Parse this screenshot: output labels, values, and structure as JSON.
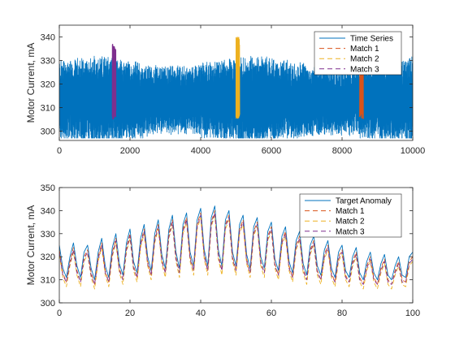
{
  "chart_data": [
    {
      "type": "line",
      "title": "",
      "xlabel": "",
      "ylabel": "Motor Current, mA",
      "xlim": [
        0,
        10000
      ],
      "ylim": [
        296,
        345
      ],
      "xticks": [
        0,
        2000,
        4000,
        6000,
        8000,
        10000
      ],
      "yticks": [
        300,
        310,
        320,
        330,
        340
      ],
      "grid": false,
      "legend_position": "top-right",
      "series": [
        {
          "name": "Time Series",
          "color": "#0072BD",
          "style": "solid",
          "x_range": [
            0,
            10000
          ],
          "n": 10000,
          "baseline": 313,
          "amplitude_range": [
            8,
            12
          ],
          "min": 297,
          "max": 336
        },
        {
          "name": "Match 1",
          "color": "#D95319",
          "style": "dashed",
          "x_range": [
            8500,
            8600
          ],
          "min": 305,
          "max": 341
        },
        {
          "name": "Match 2",
          "color": "#EDB120",
          "style": "dashed",
          "x_range": [
            5000,
            5100
          ],
          "min": 305,
          "max": 340
        },
        {
          "name": "Match 3",
          "color": "#7E2F8E",
          "style": "dashed",
          "x_range": [
            1500,
            1600
          ],
          "min": 305,
          "max": 337
        }
      ]
    },
    {
      "type": "line",
      "title": "",
      "xlabel": "",
      "ylabel": "Motor Current, mA",
      "xlim": [
        0,
        100
      ],
      "ylim": [
        300,
        350
      ],
      "xticks": [
        0,
        20,
        40,
        60,
        80,
        100
      ],
      "yticks": [
        300,
        310,
        320,
        330,
        340,
        350
      ],
      "grid": false,
      "legend_position": "top-right",
      "series": [
        {
          "name": "Target Anomaly",
          "color": "#0072BD",
          "style": "solid",
          "x": [
            0,
            1,
            2,
            3,
            4,
            5,
            6,
            7,
            8,
            9,
            10,
            11,
            12,
            13,
            14,
            15,
            16,
            17,
            18,
            19,
            20,
            21,
            22,
            23,
            24,
            25,
            26,
            27,
            28,
            29,
            30,
            31,
            32,
            33,
            34,
            35,
            36,
            37,
            38,
            39,
            40,
            41,
            42,
            43,
            44,
            45,
            46,
            47,
            48,
            49,
            50,
            51,
            52,
            53,
            54,
            55,
            56,
            57,
            58,
            59,
            60,
            61,
            62,
            63,
            64,
            65,
            66,
            67,
            68,
            69,
            70,
            71,
            72,
            73,
            74,
            75,
            76,
            77,
            78,
            79,
            80,
            81,
            82,
            83,
            84,
            85,
            86,
            87,
            88,
            89,
            90,
            91,
            92,
            93,
            94,
            95,
            96,
            97,
            98,
            99,
            100
          ],
          "values": [
            325,
            315,
            311,
            320,
            326,
            316,
            311,
            322,
            325,
            315,
            310,
            322,
            328,
            316,
            311,
            324,
            330,
            317,
            312,
            326,
            332,
            318,
            313,
            328,
            334,
            320,
            314,
            330,
            336,
            321,
            315,
            332,
            338,
            322,
            315,
            334,
            339,
            322,
            316,
            336,
            341,
            323,
            316,
            337,
            342,
            323,
            316,
            336,
            340,
            322,
            316,
            334,
            338,
            321,
            315,
            333,
            337,
            320,
            315,
            331,
            335,
            319,
            314,
            329,
            333,
            318,
            313,
            327,
            331,
            317,
            312,
            325,
            329,
            316,
            312,
            323,
            327,
            315,
            311,
            322,
            325,
            314,
            311,
            320,
            324,
            313,
            310,
            318,
            322,
            313,
            310,
            317,
            321,
            312,
            310,
            316,
            320,
            312,
            311,
            320,
            322
          ]
        },
        {
          "name": "Match 1",
          "color": "#D95319",
          "style": "dashed",
          "x": [
            0,
            1,
            2,
            3,
            4,
            5,
            6,
            7,
            8,
            9,
            10,
            11,
            12,
            13,
            14,
            15,
            16,
            17,
            18,
            19,
            20,
            21,
            22,
            23,
            24,
            25,
            26,
            27,
            28,
            29,
            30,
            31,
            32,
            33,
            34,
            35,
            36,
            37,
            38,
            39,
            40,
            41,
            42,
            43,
            44,
            45,
            46,
            47,
            48,
            49,
            50,
            51,
            52,
            53,
            54,
            55,
            56,
            57,
            58,
            59,
            60,
            61,
            62,
            63,
            64,
            65,
            66,
            67,
            68,
            69,
            70,
            71,
            72,
            73,
            74,
            75,
            76,
            77,
            78,
            79,
            80,
            81,
            82,
            83,
            84,
            85,
            86,
            87,
            88,
            89,
            90,
            91,
            92,
            93,
            94,
            95,
            96,
            97,
            98,
            99,
            100
          ],
          "values": [
            323,
            313,
            309,
            318,
            324,
            314,
            309,
            320,
            323,
            313,
            308,
            320,
            326,
            314,
            309,
            322,
            328,
            315,
            310,
            324,
            330,
            316,
            311,
            326,
            332,
            318,
            312,
            328,
            334,
            319,
            313,
            330,
            336,
            320,
            313,
            332,
            337,
            320,
            314,
            334,
            339,
            321,
            314,
            335,
            340,
            321,
            314,
            334,
            338,
            320,
            314,
            332,
            336,
            319,
            313,
            331,
            335,
            318,
            313,
            329,
            333,
            317,
            312,
            327,
            331,
            316,
            311,
            325,
            329,
            315,
            310,
            323,
            327,
            314,
            310,
            321,
            325,
            313,
            309,
            320,
            323,
            312,
            309,
            318,
            322,
            311,
            308,
            316,
            320,
            311,
            308,
            315,
            319,
            310,
            308,
            314,
            318,
            310,
            309,
            318,
            320
          ]
        },
        {
          "name": "Match 2",
          "color": "#EDB120",
          "style": "dashed",
          "x": [
            0,
            1,
            2,
            3,
            4,
            5,
            6,
            7,
            8,
            9,
            10,
            11,
            12,
            13,
            14,
            15,
            16,
            17,
            18,
            19,
            20,
            21,
            22,
            23,
            24,
            25,
            26,
            27,
            28,
            29,
            30,
            31,
            32,
            33,
            34,
            35,
            36,
            37,
            38,
            39,
            40,
            41,
            42,
            43,
            44,
            45,
            46,
            47,
            48,
            49,
            50,
            51,
            52,
            53,
            54,
            55,
            56,
            57,
            58,
            59,
            60,
            61,
            62,
            63,
            64,
            65,
            66,
            67,
            68,
            69,
            70,
            71,
            72,
            73,
            74,
            75,
            76,
            77,
            78,
            79,
            80,
            81,
            82,
            83,
            84,
            85,
            86,
            87,
            88,
            89,
            90,
            91,
            92,
            93,
            94,
            95,
            96,
            97,
            98,
            99,
            100
          ],
          "values": [
            321,
            311,
            307,
            316,
            322,
            312,
            307,
            318,
            321,
            311,
            306,
            318,
            324,
            312,
            307,
            320,
            326,
            313,
            308,
            322,
            328,
            314,
            309,
            324,
            330,
            316,
            310,
            326,
            332,
            317,
            311,
            328,
            334,
            318,
            311,
            330,
            335,
            318,
            312,
            332,
            337,
            319,
            312,
            333,
            338,
            319,
            312,
            332,
            336,
            318,
            312,
            330,
            334,
            317,
            311,
            329,
            333,
            316,
            311,
            327,
            331,
            315,
            310,
            325,
            329,
            314,
            309,
            323,
            327,
            313,
            308,
            321,
            325,
            312,
            308,
            319,
            323,
            311,
            307,
            318,
            321,
            310,
            307,
            316,
            320,
            309,
            306,
            314,
            318,
            309,
            306,
            313,
            317,
            308,
            306,
            312,
            316,
            308,
            307,
            316,
            318
          ]
        },
        {
          "name": "Match 3",
          "color": "#7E2F8E",
          "style": "dashed",
          "x": [
            0,
            1,
            2,
            3,
            4,
            5,
            6,
            7,
            8,
            9,
            10,
            11,
            12,
            13,
            14,
            15,
            16,
            17,
            18,
            19,
            20,
            21,
            22,
            23,
            24,
            25,
            26,
            27,
            28,
            29,
            30,
            31,
            32,
            33,
            34,
            35,
            36,
            37,
            38,
            39,
            40,
            41,
            42,
            43,
            44,
            45,
            46,
            47,
            48,
            49,
            50,
            51,
            52,
            53,
            54,
            55,
            56,
            57,
            58,
            59,
            60,
            61,
            62,
            63,
            64,
            65,
            66,
            67,
            68,
            69,
            70,
            71,
            72,
            73,
            74,
            75,
            76,
            77,
            78,
            79,
            80,
            81,
            82,
            83,
            84,
            85,
            86,
            87,
            88,
            89,
            90,
            91,
            92,
            93,
            94,
            95,
            96,
            97,
            98,
            99,
            100
          ],
          "values": [
            322,
            312,
            309,
            317,
            323,
            313,
            309,
            319,
            322,
            312,
            308,
            319,
            325,
            313,
            309,
            321,
            327,
            314,
            310,
            323,
            329,
            315,
            311,
            325,
            331,
            317,
            312,
            327,
            333,
            318,
            313,
            329,
            335,
            319,
            313,
            331,
            336,
            319,
            314,
            333,
            338,
            320,
            314,
            334,
            339,
            320,
            314,
            333,
            337,
            319,
            314,
            331,
            335,
            318,
            313,
            330,
            334,
            317,
            313,
            328,
            332,
            316,
            312,
            326,
            330,
            315,
            311,
            324,
            328,
            314,
            310,
            322,
            326,
            313,
            310,
            320,
            324,
            312,
            309,
            319,
            322,
            311,
            309,
            317,
            321,
            310,
            308,
            315,
            319,
            310,
            308,
            314,
            318,
            309,
            308,
            313,
            317,
            309,
            309,
            317,
            319
          ]
        }
      ]
    }
  ]
}
